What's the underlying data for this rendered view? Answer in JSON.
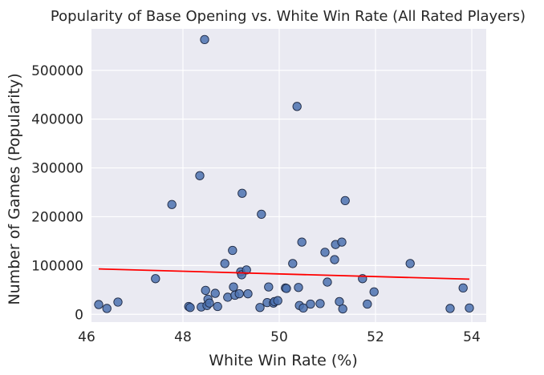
{
  "chart_data": {
    "type": "scatter",
    "title": "Popularity of Base Opening vs. White Win Rate (All Rated Players)",
    "xlabel": "White Win Rate (%)",
    "ylabel": "Number of Games (Popularity)",
    "xlim": [
      46.1,
      54.3
    ],
    "ylim": [
      -16000,
      585000
    ],
    "xticks": [
      46,
      48,
      50,
      52,
      54
    ],
    "yticks": [
      0,
      100000,
      200000,
      300000,
      400000,
      500000
    ],
    "grid": true,
    "colors": {
      "background": "#eaeaf2",
      "grid": "#ffffff",
      "point_fill": "#4c72b0",
      "point_edge": "#1f2a44",
      "trend": "#ff0000"
    },
    "trendline": {
      "x": [
        46.25,
        53.95
      ],
      "y": [
        93000,
        72000
      ]
    },
    "points": [
      {
        "x": 46.25,
        "y": 20000
      },
      {
        "x": 46.42,
        "y": 12000
      },
      {
        "x": 46.65,
        "y": 25000
      },
      {
        "x": 47.43,
        "y": 73000
      },
      {
        "x": 47.77,
        "y": 225000
      },
      {
        "x": 48.12,
        "y": 16000
      },
      {
        "x": 48.15,
        "y": 14000
      },
      {
        "x": 48.35,
        "y": 284000
      },
      {
        "x": 48.38,
        "y": 15000
      },
      {
        "x": 48.45,
        "y": 563000
      },
      {
        "x": 48.47,
        "y": 49000
      },
      {
        "x": 48.5,
        "y": 18000
      },
      {
        "x": 48.52,
        "y": 31000
      },
      {
        "x": 48.55,
        "y": 23000
      },
      {
        "x": 48.67,
        "y": 43000
      },
      {
        "x": 48.72,
        "y": 16000
      },
      {
        "x": 48.87,
        "y": 104000
      },
      {
        "x": 48.93,
        "y": 35000
      },
      {
        "x": 49.03,
        "y": 131000
      },
      {
        "x": 49.05,
        "y": 56000
      },
      {
        "x": 49.08,
        "y": 39000
      },
      {
        "x": 49.17,
        "y": 42000
      },
      {
        "x": 49.2,
        "y": 87000
      },
      {
        "x": 49.22,
        "y": 81000
      },
      {
        "x": 49.23,
        "y": 248000
      },
      {
        "x": 49.32,
        "y": 91000
      },
      {
        "x": 49.35,
        "y": 42000
      },
      {
        "x": 49.6,
        "y": 14000
      },
      {
        "x": 49.63,
        "y": 205000
      },
      {
        "x": 49.75,
        "y": 24000
      },
      {
        "x": 49.78,
        "y": 56000
      },
      {
        "x": 49.88,
        "y": 23000
      },
      {
        "x": 49.9,
        "y": 26000
      },
      {
        "x": 49.97,
        "y": 28000
      },
      {
        "x": 50.13,
        "y": 54000
      },
      {
        "x": 50.15,
        "y": 53000
      },
      {
        "x": 50.28,
        "y": 104000
      },
      {
        "x": 50.37,
        "y": 426000
      },
      {
        "x": 50.4,
        "y": 55000
      },
      {
        "x": 50.42,
        "y": 18000
      },
      {
        "x": 50.47,
        "y": 148000
      },
      {
        "x": 50.5,
        "y": 13000
      },
      {
        "x": 50.65,
        "y": 21000
      },
      {
        "x": 50.85,
        "y": 22000
      },
      {
        "x": 50.95,
        "y": 127000
      },
      {
        "x": 51.0,
        "y": 66000
      },
      {
        "x": 51.15,
        "y": 112000
      },
      {
        "x": 51.17,
        "y": 143000
      },
      {
        "x": 51.25,
        "y": 26000
      },
      {
        "x": 51.3,
        "y": 148000
      },
      {
        "x": 51.32,
        "y": 11000
      },
      {
        "x": 51.37,
        "y": 233000
      },
      {
        "x": 51.73,
        "y": 73000
      },
      {
        "x": 51.83,
        "y": 21000
      },
      {
        "x": 51.97,
        "y": 46000
      },
      {
        "x": 52.72,
        "y": 104000
      },
      {
        "x": 53.55,
        "y": 12000
      },
      {
        "x": 53.82,
        "y": 54000
      },
      {
        "x": 53.95,
        "y": 13000
      }
    ]
  }
}
